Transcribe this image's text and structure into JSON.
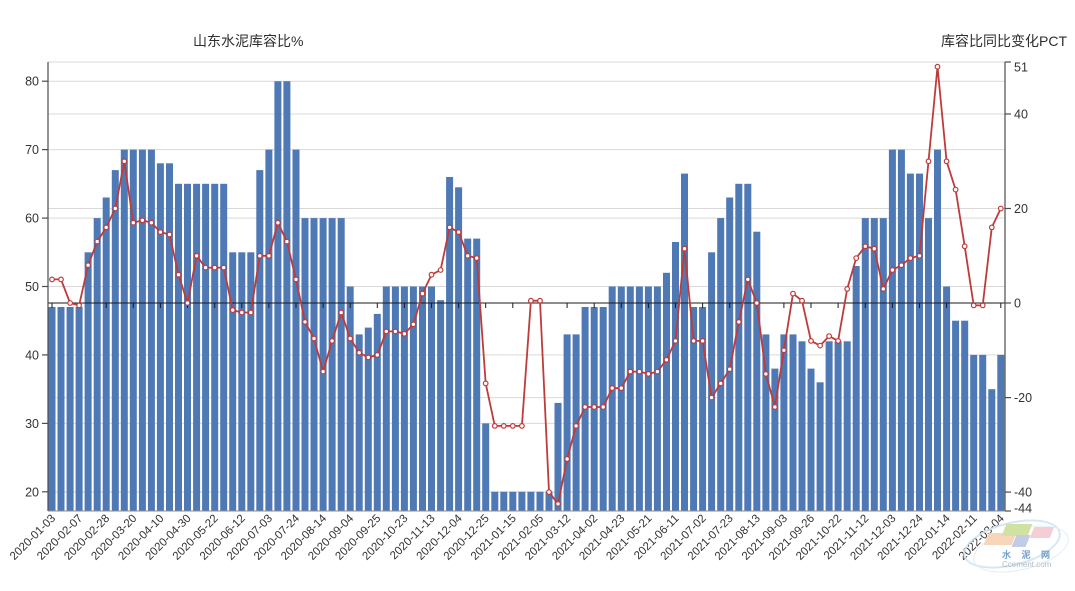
{
  "header": {
    "left_title": "山东水泥库容比%",
    "right_title": "库容比同比变化PCT"
  },
  "chart_data": {
    "type": "bar+line",
    "title": "山东水泥库容比%",
    "legend_position": "none",
    "grid": true,
    "left_axis": {
      "title": "山东水泥库容比%",
      "ticks": [
        80,
        70,
        60,
        50,
        40,
        30,
        20
      ],
      "min": 17.2,
      "max": 82.8
    },
    "right_axis": {
      "title": "库容比同比变化PCT",
      "ticks": [
        51,
        40,
        20,
        0,
        -20,
        -40,
        -44
      ],
      "min": -44,
      "max": 51
    },
    "zero_line_right_value": 0,
    "x_labels": [
      "2020-01-03",
      "2020-02-07",
      "2020-02-28",
      "2020-03-20",
      "2020-04-10",
      "2020-04-30",
      "2020-05-22",
      "2020-06-12",
      "2020-07-03",
      "2020-07-24",
      "2020-08-14",
      "2020-09-04",
      "2020-09-25",
      "2020-10-23",
      "2020-11-13",
      "2020-12-04",
      "2020-12-25",
      "2021-01-15",
      "2021-02-05",
      "2021-03-12",
      "2021-04-02",
      "2021-04-23",
      "2021-05-21",
      "2021-06-11",
      "2021-07-02",
      "2021-07-23",
      "2021-08-13",
      "2021-09-03",
      "2021-09-26",
      "2021-10-22",
      "2021-11-12",
      "2021-12-03",
      "2021-12-24",
      "2022-01-14",
      "2022-02-11",
      "2022-03-04"
    ],
    "label_every": 3,
    "series": [
      {
        "name": "山东水泥库容比%",
        "type": "bar",
        "axis": "left",
        "color": "#4e79b4",
        "values": [
          47,
          47,
          47,
          47,
          55,
          60,
          63,
          67,
          70,
          70,
          70,
          70,
          68,
          68,
          65,
          65,
          65,
          65,
          65,
          65,
          55,
          55,
          55,
          67,
          70,
          80,
          80,
          70,
          60,
          60,
          60,
          60,
          60,
          50,
          43,
          44,
          46,
          50,
          50,
          50,
          50,
          50,
          50,
          48,
          66,
          64.5,
          57,
          57,
          30,
          20,
          20,
          20,
          20,
          20,
          20,
          20,
          33,
          43,
          43,
          47,
          47,
          47,
          50,
          50,
          50,
          50,
          50,
          50,
          52,
          56.5,
          66.5,
          47,
          47,
          55,
          60,
          63,
          65,
          65,
          58,
          43,
          38,
          43,
          43,
          42,
          38,
          36,
          42,
          42,
          42,
          53,
          60,
          60,
          60,
          70,
          70,
          66.5,
          66.5,
          60,
          70,
          50,
          45,
          45,
          40,
          40,
          35,
          40
        ]
      },
      {
        "name": "库容比同比变化PCT",
        "type": "line",
        "axis": "right",
        "color": "#bf3b3b",
        "marker": "circle-white",
        "values": [
          5,
          5,
          0,
          -0.5,
          8,
          13,
          16,
          20,
          30,
          17,
          17.5,
          17,
          15,
          14.5,
          6,
          0,
          10,
          7.5,
          7.5,
          7.5,
          -1.5,
          -2,
          -2,
          10,
          10,
          17,
          13,
          5,
          -4,
          -7.5,
          -14.5,
          -8,
          -2,
          -7.5,
          -10.5,
          -11.5,
          -11,
          -6,
          -6,
          -6.5,
          -4.5,
          2,
          6,
          7,
          16,
          15,
          10,
          9.5,
          -17,
          -26,
          -26,
          -26,
          -26,
          0.5,
          0.5,
          -40,
          -42.5,
          -33,
          -26,
          -22,
          -22,
          -22,
          -18,
          -18,
          -14.5,
          -14.5,
          -15,
          -14.5,
          -12,
          -8,
          11.5,
          -8,
          -8,
          -20,
          -17,
          -14,
          -4,
          5,
          0,
          -15,
          -22,
          -10,
          2,
          0.5,
          -8,
          -9,
          -7,
          -8,
          3,
          9.5,
          12,
          11.5,
          3,
          7,
          8,
          9.5,
          10,
          30,
          50,
          30,
          24,
          12,
          -0.5,
          -0.5,
          16,
          20
        ]
      }
    ],
    "colors": {
      "bar": "#4e79b4",
      "line": "#bf3b3b",
      "grid": "#d9d9d9",
      "zero_line": "#1a1a1a",
      "axis": "#4d4d4d",
      "tick_text": "#333333"
    }
  },
  "watermark": {
    "line1": "水 泥 网",
    "line2": "Ccement.com",
    "colors": {
      "swoosh": "#cfe2f0",
      "orange": "#f6cfae",
      "green": "#c9dc91",
      "blue": "#b9c4e2",
      "pink": "#f3c6cd",
      "text_blue": "#5a8fc3",
      "text_gray": "#a4afba"
    }
  }
}
